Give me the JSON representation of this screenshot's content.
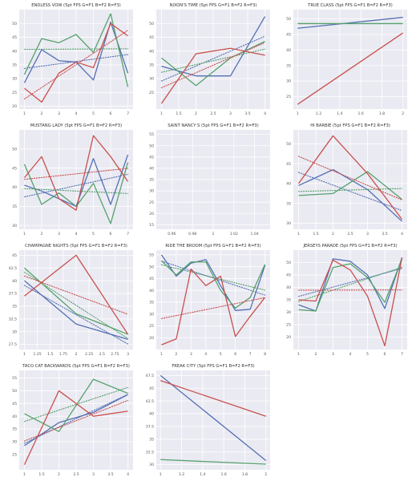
{
  "colors": {
    "blue": "#5470b3",
    "green": "#55a26c",
    "red": "#c8504e",
    "plot_bg": "#eaeaf2",
    "grid": "#ffffff"
  },
  "chart_data": [
    {
      "type": "line",
      "title": "ENDLESS VOW (5pt FPS G=F1 B=F2 R=F3)",
      "x": [
        1,
        2,
        3,
        4,
        5,
        6,
        7
      ],
      "xticks": [
        1,
        2,
        3,
        4,
        5,
        6,
        7
      ],
      "yticks": [
        20,
        25,
        30,
        35,
        40,
        45,
        50
      ],
      "xlim": [
        0.7,
        7.3
      ],
      "ylim": [
        19,
        55
      ],
      "trendlines": "dotted",
      "grid": true,
      "series": [
        {
          "color": "blue",
          "values": [
            28.5,
            40.5,
            36.5,
            36,
            29.5,
            50.5,
            32
          ]
        },
        {
          "color": "green",
          "values": [
            31.5,
            44.5,
            43,
            46,
            39.5,
            53.5,
            27
          ]
        },
        {
          "color": "red",
          "values": [
            26.5,
            21.5,
            32,
            36,
            34,
            50,
            45.5
          ]
        }
      ]
    },
    {
      "type": "line",
      "title": "NIXON'S TIME (5pt FPS G=F1 B=F2 R=F3)",
      "x": [
        1,
        2,
        3,
        4
      ],
      "xticks": [
        1.0,
        1.5,
        2.0,
        2.5,
        3.0,
        3.5,
        4.0
      ],
      "yticks": [
        25,
        30,
        35,
        40,
        45,
        50
      ],
      "xlim": [
        0.85,
        4.15
      ],
      "ylim": [
        19,
        55
      ],
      "trendlines": "dotted",
      "grid": true,
      "series": [
        {
          "color": "blue",
          "values": [
            34.5,
            31,
            31,
            52.5
          ]
        },
        {
          "color": "green",
          "values": [
            37.5,
            27.5,
            37.5,
            43.5
          ]
        },
        {
          "color": "red",
          "values": [
            21,
            39,
            41,
            38.5
          ]
        }
      ]
    },
    {
      "type": "line",
      "title": "TRUE CLASS (5pt FPS G=F1 B=F2 R=F3)",
      "x": [
        1,
        2
      ],
      "xticks": [
        1.0,
        1.2,
        1.4,
        1.6,
        1.8,
        2.0
      ],
      "yticks": [
        25,
        30,
        35,
        40,
        45,
        50
      ],
      "xlim": [
        0.96,
        2.04
      ],
      "ylim": [
        21,
        53
      ],
      "trendlines": "none",
      "grid": true,
      "series": [
        {
          "color": "blue",
          "values": [
            47,
            50.5
          ]
        },
        {
          "color": "green",
          "values": [
            48.5,
            48.5
          ]
        },
        {
          "color": "red",
          "values": [
            22.5,
            45.5
          ]
        }
      ]
    },
    {
      "type": "line",
      "title": "MUSTANG LADY (5pt FPS G=F1 B=F2 R=F3)",
      "x": [
        1,
        2,
        3,
        4,
        5,
        6,
        7
      ],
      "xticks": [
        1,
        2,
        3,
        4,
        5,
        6,
        7
      ],
      "yticks": [
        30,
        35,
        40,
        45,
        50
      ],
      "xlim": [
        0.7,
        7.3
      ],
      "ylim": [
        29,
        55
      ],
      "trendlines": "dotted",
      "grid": true,
      "series": [
        {
          "color": "blue",
          "values": [
            40.5,
            39,
            37,
            35,
            47.5,
            35.5,
            48.5
          ]
        },
        {
          "color": "green",
          "values": [
            46,
            35.5,
            38.5,
            35,
            41,
            30.5,
            46.5
          ]
        },
        {
          "color": "red",
          "values": [
            42.5,
            48,
            37,
            34,
            53.5,
            48,
            41.5
          ]
        }
      ]
    },
    {
      "type": "line",
      "title": "SAINT NANCY S (5pt FPS G=F1 B=F2 R=F3)",
      "x": [],
      "xticks": [
        0.96,
        0.98,
        1.0,
        1.02,
        1.04
      ],
      "yticks": [
        15,
        20,
        25,
        30,
        35,
        40,
        45,
        50,
        55
      ],
      "xlim": [
        0.945,
        1.055
      ],
      "ylim": [
        13,
        57
      ],
      "trendlines": "none",
      "grid": true,
      "series": []
    },
    {
      "type": "line",
      "title": "HI BARBIE (5pt FPS G=F1 B=F2 R=F3)",
      "x": [
        1,
        2,
        3,
        4
      ],
      "xticks": [
        1.0,
        1.5,
        2.0,
        2.5,
        3.0,
        3.5,
        4.0
      ],
      "yticks": [
        30,
        35,
        40,
        45,
        50
      ],
      "xlim": [
        0.85,
        4.15
      ],
      "ylim": [
        28.5,
        53.5
      ],
      "trendlines": "dotted",
      "grid": true,
      "series": [
        {
          "color": "blue",
          "values": [
            39.5,
            43.5,
            38.5,
            30.5
          ]
        },
        {
          "color": "green",
          "values": [
            37,
            37.5,
            43,
            36
          ]
        },
        {
          "color": "red",
          "values": [
            40,
            52,
            42.5,
            31
          ]
        }
      ]
    },
    {
      "type": "line",
      "title": "CHAMPAGNE NIGHTS (5pt FPS G=F1 B=F2 R=F3)",
      "x": [
        1,
        2,
        3
      ],
      "xticks": [
        1.0,
        1.25,
        1.5,
        1.75,
        2.0,
        2.25,
        2.5,
        2.75,
        3.0
      ],
      "yticks": [
        27.5,
        30.0,
        32.5,
        35.0,
        37.5,
        40.0,
        42.5,
        45.0
      ],
      "xlim": [
        0.9,
        3.1
      ],
      "ylim": [
        26.5,
        46
      ],
      "trendlines": "dotted",
      "grid": true,
      "series": [
        {
          "color": "blue",
          "values": [
            40,
            31.5,
            28.5
          ]
        },
        {
          "color": "green",
          "values": [
            42.5,
            33.5,
            29.5
          ]
        },
        {
          "color": "red",
          "values": [
            37,
            45,
            29.5
          ]
        }
      ]
    },
    {
      "type": "line",
      "title": "RIDE THE BROOM (5pt FPS G=F1 B=F2 R=F3)",
      "x": [
        1,
        2,
        3,
        4,
        5,
        6,
        7,
        8
      ],
      "xticks": [
        1,
        2,
        3,
        4,
        5,
        6,
        7,
        8
      ],
      "yticks": [
        20,
        25,
        30,
        35,
        40,
        45,
        50,
        55
      ],
      "xlim": [
        0.65,
        8.35
      ],
      "ylim": [
        15,
        57
      ],
      "trendlines": "dotted",
      "grid": true,
      "series": [
        {
          "color": "blue",
          "values": [
            55,
            46,
            51.5,
            53,
            42,
            31.5,
            32,
            50.5
          ]
        },
        {
          "color": "green",
          "values": [
            52.5,
            46.5,
            52,
            52,
            40,
            32.5,
            37,
            51
          ]
        },
        {
          "color": "red",
          "values": [
            17,
            19.5,
            49,
            42,
            46,
            20.5,
            29,
            37
          ]
        }
      ]
    },
    {
      "type": "line",
      "title": "JERSEYS PARADE (5pt FPS G=F1 B=F2 R=F3)",
      "x": [
        1,
        2,
        3,
        4,
        5,
        6,
        7
      ],
      "xticks": [
        1,
        2,
        3,
        4,
        5,
        6,
        7
      ],
      "yticks": [
        20,
        25,
        30,
        35,
        40,
        45,
        50
      ],
      "xlim": [
        0.7,
        7.3
      ],
      "ylim": [
        15,
        55
      ],
      "trendlines": "dotted",
      "grid": true,
      "series": [
        {
          "color": "blue",
          "values": [
            33,
            30.5,
            51.5,
            50.5,
            45,
            31.5,
            52
          ]
        },
        {
          "color": "green",
          "values": [
            31,
            30.5,
            48,
            49.5,
            44,
            34,
            51.5
          ]
        },
        {
          "color": "red",
          "values": [
            35,
            34.5,
            51,
            47,
            36.5,
            16.5,
            52
          ]
        }
      ]
    },
    {
      "type": "line",
      "title": "TACO CAT BACKWARDS (5pt FPS G=F1 B=F2 R=F3)",
      "x": [
        1,
        2,
        3,
        4
      ],
      "xticks": [
        1.0,
        1.5,
        2.0,
        2.5,
        3.0,
        3.5,
        4.0
      ],
      "yticks": [
        25,
        30,
        35,
        40,
        45,
        50,
        55
      ],
      "xlim": [
        0.85,
        4.15
      ],
      "ylim": [
        19,
        58
      ],
      "trendlines": "dotted",
      "grid": true,
      "series": [
        {
          "color": "blue",
          "values": [
            28.5,
            37.5,
            41.5,
            48.5
          ]
        },
        {
          "color": "green",
          "values": [
            41,
            34,
            54.5,
            49
          ]
        },
        {
          "color": "red",
          "values": [
            21,
            50,
            40,
            42
          ]
        }
      ]
    },
    {
      "type": "line",
      "title": "FREAK CITY (5pt FPS G=F1 B=F2 R=F3)",
      "x": [
        1,
        2
      ],
      "xticks": [
        1.0,
        1.2,
        1.4,
        1.6,
        1.8,
        2.0
      ],
      "yticks": [
        30.0,
        32.5,
        35.0,
        37.5,
        40.0,
        42.5,
        45.0,
        47.5
      ],
      "xlim": [
        0.96,
        2.04
      ],
      "ylim": [
        29,
        48.5
      ],
      "trendlines": "none",
      "grid": true,
      "series": [
        {
          "color": "blue",
          "values": [
            47.5,
            30.8
          ]
        },
        {
          "color": "green",
          "values": [
            31,
            30.1
          ]
        },
        {
          "color": "red",
          "values": [
            46.5,
            39.5
          ]
        }
      ]
    }
  ]
}
